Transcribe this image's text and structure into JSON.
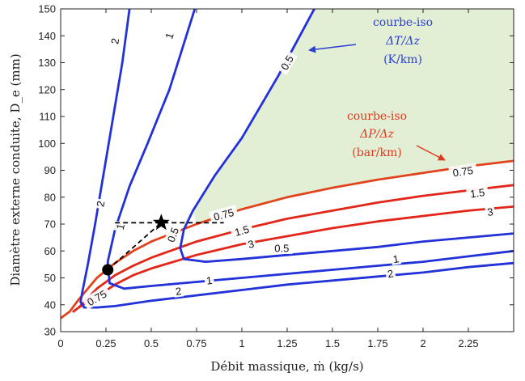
{
  "chart_data": {
    "type": "line",
    "xlabel": "Débit massique, ṁ (kg/s)",
    "ylabel": "Diamètre externe conduite, D_e (mm)",
    "xlim": [
      0,
      2.5
    ],
    "ylim": [
      30,
      150
    ],
    "x_ticks": [
      "0",
      "0.25",
      "0.5",
      "0.75",
      "1",
      "1.25",
      "1.5",
      "1.75",
      "2",
      "2.25"
    ],
    "y_ticks": [
      "30",
      "40",
      "50",
      "60",
      "70",
      "80",
      "90",
      "100",
      "110",
      "120",
      "130",
      "140",
      "150"
    ],
    "grid": false,
    "feasible_region": {
      "color": "#e2efd5"
    },
    "annotations": {
      "dT": {
        "l1": "courbe-iso",
        "l2": "ΔT/Δz",
        "l3": "(K/km)",
        "color": "#2b3fd0"
      },
      "dP": {
        "l1": "courbe-iso",
        "l2": "ΔP/Δz",
        "l3": "(bar/km)",
        "color": "#e03a1e"
      }
    },
    "series": [
      {
        "group": "dP",
        "level": "0.75",
        "color": "#e2431c",
        "x": [
          0.0,
          0.05,
          0.1,
          0.2,
          0.3,
          0.4,
          0.5,
          0.75,
          1.0,
          1.25,
          1.5,
          1.75,
          2.0,
          2.25,
          2.5
        ],
        "y": [
          35,
          37.5,
          42,
          50,
          55.5,
          60,
          63.5,
          70,
          75.5,
          80,
          83.5,
          86.5,
          89,
          91.5,
          93.5
        ]
      },
      {
        "group": "dP",
        "level": "1.5",
        "color": "#e2261a",
        "x": [
          0.07,
          0.1,
          0.2,
          0.3,
          0.4,
          0.5,
          0.75,
          1.0,
          1.25,
          1.5,
          1.75,
          2.0,
          2.25,
          2.5
        ],
        "y": [
          37.5,
          39,
          46,
          51,
          54.5,
          57.5,
          63.5,
          68,
          72,
          75,
          78,
          80.5,
          82.5,
          84.5
        ]
      },
      {
        "group": "dP",
        "level": "3",
        "color": "#e2261a",
        "x": [
          0.1,
          0.2,
          0.3,
          0.4,
          0.5,
          0.75,
          1.0,
          1.25,
          1.5,
          1.75,
          2.0,
          2.25,
          2.5
        ],
        "y": [
          39,
          43,
          47.5,
          51,
          53.5,
          58.5,
          62.5,
          65.5,
          68.5,
          71,
          73,
          75,
          76.5
        ]
      },
      {
        "group": "dT",
        "level": "0.5",
        "color": "#2231d8",
        "x": [
          1.4,
          1.2,
          1.0,
          0.85,
          0.73,
          0.68,
          0.66,
          0.68,
          0.8,
          1.0,
          1.25,
          1.5,
          1.75,
          2.0,
          2.25,
          2.5
        ],
        "y": [
          150,
          125,
          102,
          88,
          75,
          68,
          61,
          57,
          56,
          57,
          58.5,
          60,
          61.5,
          63.5,
          65,
          66.5
        ]
      },
      {
        "group": "dT",
        "level": "1",
        "color": "#2231d8",
        "x": [
          0.74,
          0.6,
          0.48,
          0.38,
          0.3,
          0.26,
          0.27,
          0.35,
          0.5,
          0.75,
          1.0,
          1.25,
          1.5,
          1.75,
          2.0,
          2.25,
          2.5
        ],
        "y": [
          150,
          120,
          100,
          84,
          68,
          56,
          48,
          46,
          47,
          48.5,
          50,
          51.5,
          53,
          54.5,
          56,
          58,
          60
        ]
      },
      {
        "group": "dT",
        "level": "2",
        "color": "#2231d8",
        "x": [
          0.38,
          0.34,
          0.29,
          0.24,
          0.19,
          0.15,
          0.12,
          0.11,
          0.13,
          0.2,
          0.3,
          0.5,
          0.75,
          1.0,
          1.25,
          1.5,
          1.75,
          2.0,
          2.25,
          2.5
        ],
        "y": [
          150,
          130,
          110,
          90,
          70,
          55,
          45,
          41,
          39,
          39,
          39.5,
          41.5,
          43.5,
          45.5,
          47.5,
          49,
          50.5,
          52,
          54,
          55.5
        ]
      }
    ],
    "contour_labels": [
      {
        "text": "2",
        "x": 0.3,
        "y": 138,
        "angle": -80
      },
      {
        "text": "1",
        "x": 0.6,
        "y": 140,
        "angle": -72
      },
      {
        "text": "0.5",
        "x": 1.25,
        "y": 130,
        "angle": -60
      },
      {
        "text": "2",
        "x": 0.22,
        "y": 77.5,
        "angle": -80
      },
      {
        "text": "1",
        "x": 0.33,
        "y": 69,
        "angle": -76
      },
      {
        "text": "0.5",
        "x": 0.62,
        "y": 66,
        "angle": -70
      },
      {
        "text": "0.5",
        "x": 1.22,
        "y": 61,
        "angle": 0
      },
      {
        "text": "1",
        "x": 1.85,
        "y": 57,
        "angle": -10
      },
      {
        "text": "2",
        "x": 1.82,
        "y": 51.5,
        "angle": -10
      },
      {
        "text": "1",
        "x": 0.82,
        "y": 49,
        "angle": -8
      },
      {
        "text": "2",
        "x": 0.65,
        "y": 45,
        "angle": -8
      },
      {
        "text": "0.75",
        "x": 0.9,
        "y": 73.5,
        "angle": -15
      },
      {
        "text": "1.5",
        "x": 1.0,
        "y": 67.5,
        "angle": -15
      },
      {
        "text": "3",
        "x": 1.05,
        "y": 62.5,
        "angle": -15
      },
      {
        "text": "0.75",
        "x": 2.22,
        "y": 89.5,
        "angle": -8
      },
      {
        "text": "1.5",
        "x": 2.3,
        "y": 81.5,
        "angle": -8
      },
      {
        "text": "3",
        "x": 2.37,
        "y": 74.5,
        "angle": -8
      },
      {
        "text": "0.75",
        "x": 0.2,
        "y": 42.5,
        "angle": -30
      }
    ],
    "markers": [
      {
        "name": "circle",
        "x": 0.26,
        "y": 53
      },
      {
        "name": "star",
        "x": 0.555,
        "y": 70.5
      }
    ],
    "dashed_path": [
      [
        0.26,
        53
      ],
      [
        0.555,
        70.5
      ],
      [
        0.3,
        70.5
      ],
      [
        0.9,
        70.5
      ]
    ]
  }
}
